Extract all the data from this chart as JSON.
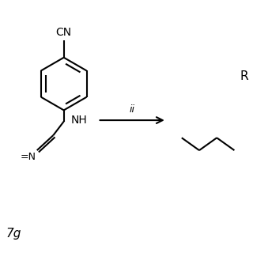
{
  "bg_color": "#ffffff",
  "line_color": "#000000",
  "text_color": "#000000",
  "arrow_label": "ii",
  "compound_label": "7g",
  "right_label": "R",
  "figsize": [
    3.2,
    3.2
  ],
  "dpi": 100,
  "xlim": [
    0,
    10
  ],
  "ylim": [
    0,
    10
  ]
}
